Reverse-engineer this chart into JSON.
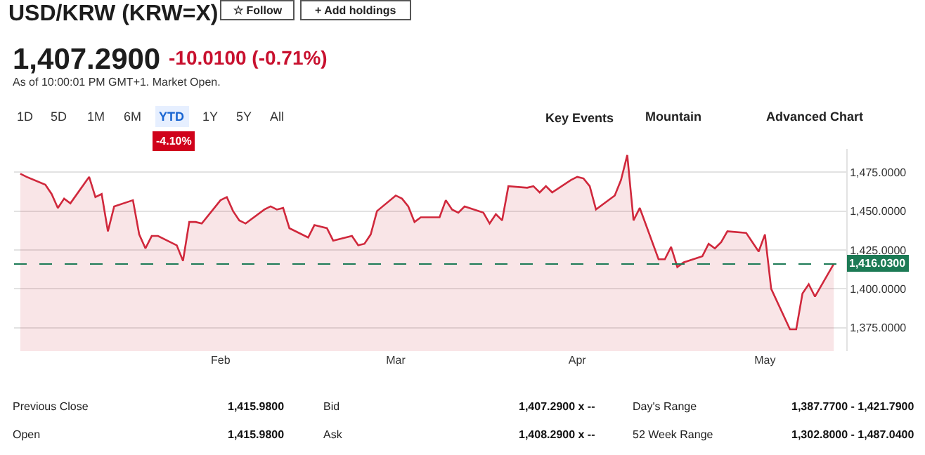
{
  "chart_data": {
    "type": "area",
    "title": "USD/KRW (KRW=X)",
    "x": [
      "--01-02",
      "--01-03",
      "--01-06",
      "--01-07",
      "--01-08",
      "--01-09",
      "--01-10",
      "--01-13",
      "--01-14",
      "--01-15",
      "--01-16",
      "--01-17",
      "--01-20",
      "--01-21",
      "--01-22",
      "--01-23",
      "--01-24",
      "--01-27",
      "--01-28",
      "--01-29",
      "--01-30",
      "--01-31",
      "--02-03",
      "--02-04",
      "--02-05",
      "--02-06",
      "--02-07",
      "--02-10",
      "--02-11",
      "--02-12",
      "--02-13",
      "--02-14",
      "--02-17",
      "--02-18",
      "--02-19",
      "--02-20",
      "--02-21",
      "--02-24",
      "--02-25",
      "--02-26",
      "--02-27",
      "--02-28",
      "--03-03",
      "--03-04",
      "--03-05",
      "--03-06",
      "--03-07",
      "--03-10",
      "--03-11",
      "--03-12",
      "--03-13",
      "--03-14",
      "--03-17",
      "--03-18",
      "--03-19",
      "--03-20",
      "--03-21",
      "--03-24",
      "--03-25",
      "--03-26",
      "--03-27",
      "--03-28",
      "--03-31",
      "--04-01",
      "--04-02",
      "--04-03",
      "--04-04",
      "--04-07",
      "--04-08",
      "--04-09",
      "--04-10",
      "--04-11",
      "--04-14",
      "--04-15",
      "--04-16",
      "--04-17",
      "--04-18",
      "--04-21",
      "--04-22",
      "--04-23",
      "--04-24",
      "--04-25",
      "--04-28",
      "--04-29",
      "--04-30",
      "--05-01",
      "--05-02",
      "--05-05",
      "--05-06",
      "--05-07",
      "--05-08",
      "--05-09",
      "--05-12"
    ],
    "series": [
      {
        "color": "#d0283c",
        "values": [
          1474,
          1472,
          1467,
          1461,
          1452,
          1458,
          1455,
          1472,
          1459,
          1461,
          1437,
          1453,
          1457,
          1435,
          1426,
          1434,
          1434,
          1428,
          1418,
          1443,
          1443,
          1442,
          1457,
          1459,
          1450,
          1444,
          1442,
          1451,
          1453,
          1451,
          1452,
          1439,
          1433,
          1441,
          1440,
          1439,
          1431,
          1434,
          1428,
          1429,
          1435,
          1450,
          1460,
          1458,
          1453,
          1443,
          1446,
          1446,
          1457,
          1451,
          1449,
          1453,
          1449,
          1442,
          1448,
          1444,
          1466,
          1465,
          1466,
          1462,
          1466,
          1462,
          1470,
          1472,
          1471,
          1466,
          1451,
          1460,
          1470,
          1486,
          1444,
          1452,
          1419,
          1419,
          1427,
          1414,
          1417,
          1421,
          1429,
          1426,
          1430,
          1437,
          1436,
          1430,
          1424,
          1435,
          1400,
          1374,
          1374,
          1397,
          1403,
          1395,
          1416
        ]
      }
    ],
    "xlim": [
      "--01-01",
      "--05-14"
    ],
    "xticks": [
      {
        "value": "--02-03",
        "label": "Feb"
      },
      {
        "value": "--03-03",
        "label": "Mar"
      },
      {
        "value": "--04-01",
        "label": "Apr"
      },
      {
        "value": "--05-01",
        "label": "May"
      }
    ],
    "ylim": [
      1360,
      1490
    ],
    "yticks": [
      {
        "value": 1375,
        "label": "1,375.0000"
      },
      {
        "value": 1400,
        "label": "1,400.0000"
      },
      {
        "value": 1425,
        "label": "1,425.0000"
      },
      {
        "value": 1450,
        "label": "1,450.0000"
      },
      {
        "value": 1475,
        "label": "1,475.0000"
      }
    ],
    "ref_lines": [
      {
        "axis": "y",
        "value": 1416.03,
        "label": "1,416.0300",
        "color": "#1c7a55",
        "line_style": "dashed"
      }
    ],
    "grid": "y",
    "annotations": [
      "☆ Follow",
      "+ Add holdings",
      "1,407.2900",
      "-10.0100 (-0.71%)",
      "As of 10:00:01 PM GMT+1. Market Open.",
      "1D",
      "5D",
      "1M",
      "6M",
      "YTD",
      "1Y",
      "5Y",
      "All",
      "-4.10%",
      "Key Events",
      "Mountain",
      "Advanced Chart",
      "Previous Close",
      "1,415.9800",
      "Bid",
      "1,407.2900 x --",
      "Day's Range",
      "1,387.7700 - 1,421.7900",
      "Open",
      "1,415.9800",
      "Ask",
      "1,408.2900 x --",
      "52 Week Range",
      "1,302.8000 - 1,487.0400"
    ]
  }
}
